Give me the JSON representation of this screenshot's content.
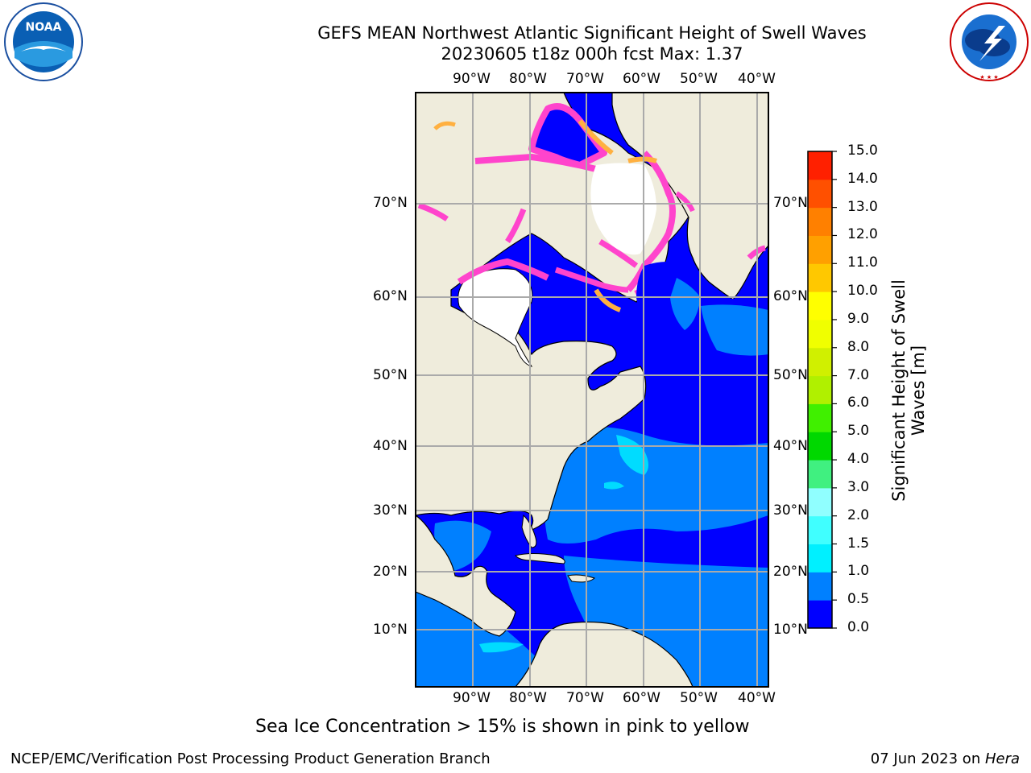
{
  "header": {
    "title_line1": "GEFS MEAN Northwest Atlantic Significant Height of Swell Waves",
    "title_line2": "20230605 t18z 000h fcst   Max: 1.37"
  },
  "logos": {
    "noaa_text": "NOAA",
    "noaa_ring_text": "NATIONAL OCEANIC AND ATMOSPHERIC ADMINISTRATION · U.S. DEPARTMENT OF COMMERCE",
    "nws_ring_text": "NATIONAL WEATHER SERVICE"
  },
  "map": {
    "lon_labels": [
      "90°W",
      "80°W",
      "70°W",
      "60°W",
      "50°W",
      "40°W"
    ],
    "lat_labels": [
      "70°N",
      "60°N",
      "50°N",
      "40°N",
      "30°N",
      "20°N",
      "10°N"
    ],
    "colors": {
      "land": "#efecdc",
      "ocean_0": "#0000ff",
      "ocean_05": "#0080ff",
      "ocean_1": "#00dcff",
      "ice_pink": "#ff44cc",
      "ice_orange": "#ffb040",
      "grid": "#aaaaaa"
    }
  },
  "colorbar": {
    "label_line1": "Significant Height of Swell",
    "label_line2": "Waves [m]",
    "ticks": [
      "0.0",
      "0.5",
      "1.0",
      "1.5",
      "2.0",
      "3.0",
      "4.0",
      "5.0",
      "6.0",
      "7.0",
      "8.0",
      "9.0",
      "10.0",
      "11.0",
      "12.0",
      "13.0",
      "14.0",
      "15.0"
    ],
    "colors": [
      "#0000ff",
      "#0080ff",
      "#00f0ff",
      "#40ffff",
      "#90ffff",
      "#40f080",
      "#00d800",
      "#40f000",
      "#b0f000",
      "#d0f000",
      "#f0ff00",
      "#ffff00",
      "#ffc800",
      "#ffa000",
      "#ff8000",
      "#ff5000",
      "#ff2000",
      "#ff0000"
    ]
  },
  "note": "Sea Ice Concentration > 15% is shown in pink to yellow",
  "footer": {
    "left": "NCEP/EMC/Verification Post Processing Product Generation Branch",
    "date": "07 Jun 2023 on ",
    "host": "Hera"
  }
}
